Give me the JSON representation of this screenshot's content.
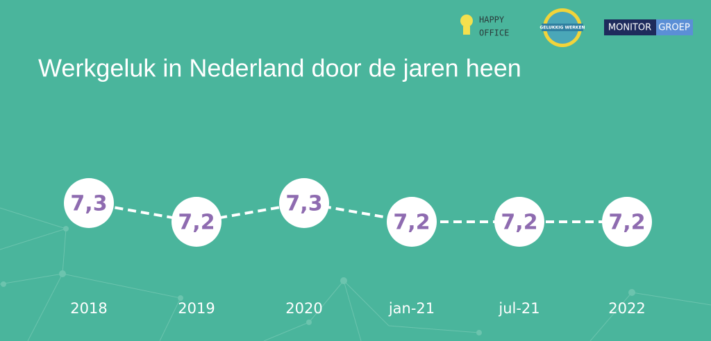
{
  "logos": {
    "happy_office": [
      "HAPPY",
      "OFFICE"
    ],
    "gelukkig_werken": "GELUKKIG WERKEN",
    "monitor_groep": [
      "MONITOR",
      "GROEP"
    ]
  },
  "chart_data": {
    "type": "line",
    "title": "Werkgeluk in Nederland door de jaren heen",
    "categories": [
      "2018",
      "2019",
      "2020",
      "jan-21",
      "jul-21",
      "2022"
    ],
    "values": [
      7.3,
      7.2,
      7.3,
      7.2,
      7.2,
      7.2
    ],
    "value_labels": [
      "7,3",
      "7,2",
      "7,3",
      "7,2",
      "7,2",
      "7,2"
    ],
    "color": "#ffffff",
    "label_color": "#8e6bb0"
  }
}
